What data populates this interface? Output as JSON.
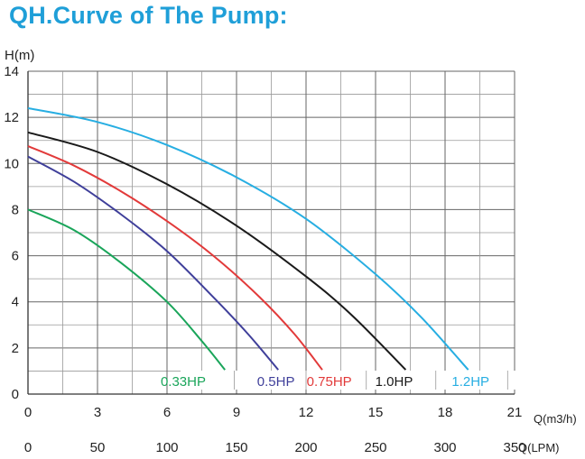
{
  "title": "QH.Curve of The Pump:",
  "chart_data": {
    "type": "line",
    "ylabel": "H(m)",
    "xlabel": "Q(m3/h)",
    "xlabel2": "Q(LPM)",
    "xlim": [
      0,
      21
    ],
    "ylim": [
      0,
      14
    ],
    "x_ticks": [
      "0",
      "3",
      "6",
      "9",
      "12",
      "15",
      "18",
      "21"
    ],
    "x2_ticks": [
      "0",
      "50",
      "100",
      "150",
      "200",
      "250",
      "300",
      "350"
    ],
    "y_ticks": [
      "0",
      "2",
      "4",
      "6",
      "8",
      "10",
      "12",
      "14"
    ],
    "grid": true,
    "series": [
      {
        "name": "0.33HP",
        "color": "#1aa55a",
        "x": [
          0,
          2,
          4,
          6,
          7.5,
          8.5
        ],
        "y": [
          8.0,
          7.1,
          5.7,
          4.0,
          2.3,
          1.05
        ]
      },
      {
        "name": "0.5HP",
        "color": "#3f3f9a",
        "x": [
          0,
          2,
          4,
          6,
          8,
          9.5,
          10.8
        ],
        "y": [
          10.3,
          9.2,
          7.8,
          6.2,
          4.2,
          2.6,
          1.05
        ]
      },
      {
        "name": "0.75HP",
        "color": "#e23a3a",
        "x": [
          0,
          2,
          4,
          6,
          8,
          10,
          11.5,
          12.7
        ],
        "y": [
          10.75,
          9.9,
          8.8,
          7.5,
          6.0,
          4.2,
          2.6,
          1.05
        ]
      },
      {
        "name": "1.0HP",
        "color": "#1a1a1a",
        "x": [
          0,
          3,
          6,
          9,
          12,
          14,
          16.3
        ],
        "y": [
          11.35,
          10.5,
          9.1,
          7.3,
          5.1,
          3.4,
          1.05
        ]
      },
      {
        "name": "1.2HP",
        "color": "#27aee2",
        "x": [
          0,
          3,
          6,
          9,
          12,
          15,
          17,
          19.0
        ],
        "y": [
          12.4,
          11.8,
          10.8,
          9.4,
          7.6,
          5.2,
          3.3,
          1.05
        ]
      }
    ]
  }
}
